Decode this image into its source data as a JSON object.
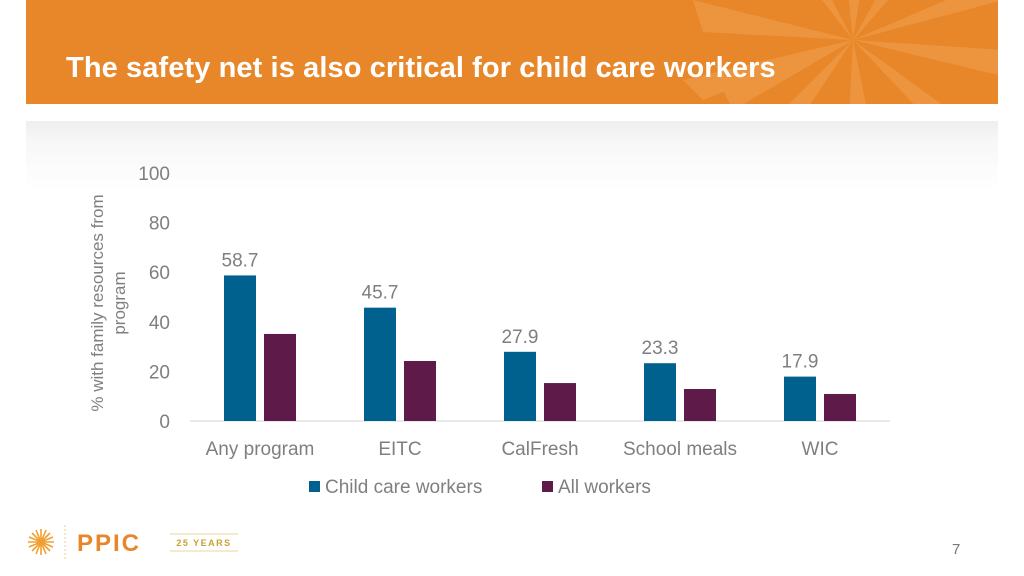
{
  "slide": {
    "title": "The safety net is also critical for child care workers",
    "page_number": "7",
    "colors": {
      "header": "#e8872a",
      "series1": "#00618f",
      "series2": "#5e1b4a"
    }
  },
  "logo": {
    "text": "PPIC",
    "badge": "25 YEARS"
  },
  "chart_data": {
    "type": "bar",
    "title": "",
    "xlabel": "",
    "ylabel": "% with family resources from program",
    "ylabel_lines": [
      "% with family resources from",
      "program"
    ],
    "ylim": [
      0,
      100
    ],
    "yticks": [
      0,
      20,
      40,
      60,
      80,
      100
    ],
    "grid": false,
    "legend_position": "bottom",
    "categories": [
      "Any program",
      "EITC",
      "CalFresh",
      "School meals",
      "WIC"
    ],
    "series": [
      {
        "name": "Child care workers",
        "values": [
          58.7,
          45.7,
          27.9,
          23.3,
          17.9
        ],
        "labels": [
          "58.7",
          "45.7",
          "27.9",
          "23.3",
          "17.9"
        ],
        "color": "#00618f"
      },
      {
        "name": "All workers",
        "values": [
          35.1,
          24.2,
          15.3,
          12.9,
          10.9
        ],
        "labels": null,
        "color": "#5e1b4a"
      }
    ]
  }
}
